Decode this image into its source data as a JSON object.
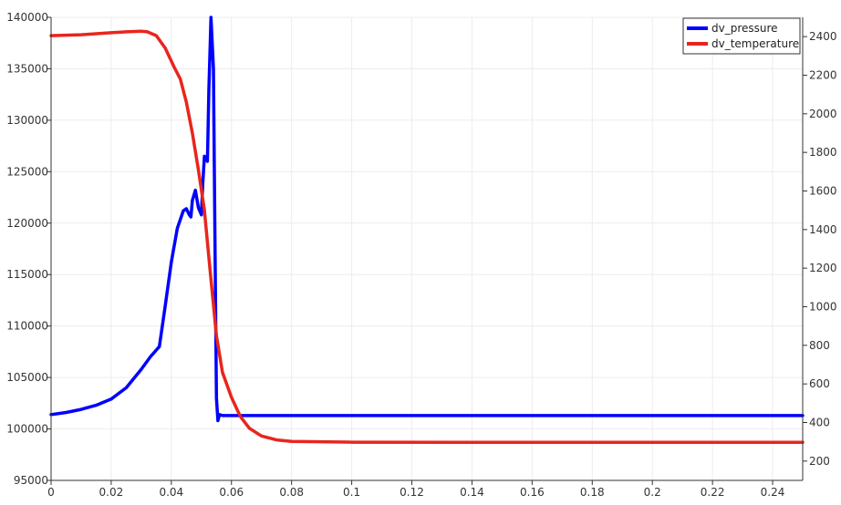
{
  "chart_data": {
    "type": "line",
    "title": "",
    "xlabel": "",
    "ylabel": "",
    "y2label": "",
    "grid": true,
    "legend_position": "top-right",
    "xlim": [
      0,
      0.25
    ],
    "ylim": [
      95000,
      140000
    ],
    "y2lim": [
      100,
      2500
    ],
    "xticks": [
      "0",
      "0.02",
      "0.04",
      "0.06",
      "0.08",
      "0.1",
      "0.12",
      "0.14",
      "0.16",
      "0.18",
      "0.2",
      "0.22",
      "0.24"
    ],
    "yticks": [
      "95000",
      "100000",
      "105000",
      "110000",
      "115000",
      "120000",
      "125000",
      "130000",
      "135000",
      "140000"
    ],
    "y2ticks": [
      "200",
      "400",
      "600",
      "800",
      "1000",
      "1200",
      "1400",
      "1600",
      "1800",
      "2000",
      "2200",
      "2400"
    ],
    "series": [
      {
        "name": "dv_pressure",
        "axis": "left",
        "color": "#0000ff",
        "x": [
          0,
          0.005,
          0.01,
          0.015,
          0.02,
          0.025,
          0.03,
          0.033,
          0.036,
          0.038,
          0.04,
          0.042,
          0.044,
          0.045,
          0.046,
          0.0465,
          0.047,
          0.048,
          0.049,
          0.05,
          0.0505,
          0.051,
          0.052,
          0.0525,
          0.0532,
          0.054,
          0.0545,
          0.055,
          0.0555,
          0.056,
          0.057,
          0.06,
          0.08,
          0.1,
          0.15,
          0.2,
          0.25
        ],
        "y": [
          101400,
          101600,
          101900,
          102300,
          102900,
          104000,
          105800,
          107000,
          108000,
          112000,
          116200,
          119500,
          121200,
          121400,
          120800,
          120600,
          122200,
          123200,
          121500,
          120800,
          124000,
          126500,
          126000,
          133000,
          140000,
          135000,
          119000,
          103000,
          100800,
          101400,
          101300,
          101300,
          101300,
          101300,
          101300,
          101300,
          101300
        ]
      },
      {
        "name": "dv_temperature",
        "axis": "right",
        "color": "#e8251e",
        "x": [
          0,
          0.01,
          0.02,
          0.025,
          0.03,
          0.032,
          0.035,
          0.038,
          0.041,
          0.043,
          0.045,
          0.047,
          0.049,
          0.051,
          0.053,
          0.055,
          0.057,
          0.06,
          0.063,
          0.066,
          0.07,
          0.075,
          0.08,
          0.1,
          0.15,
          0.2,
          0.25
        ],
        "y": [
          2405,
          2410,
          2420,
          2425,
          2428,
          2425,
          2405,
          2340,
          2240,
          2180,
          2060,
          1900,
          1710,
          1500,
          1170,
          850,
          660,
          530,
          430,
          370,
          330,
          310,
          302,
          298,
          297,
          297,
          297
        ]
      }
    ]
  }
}
